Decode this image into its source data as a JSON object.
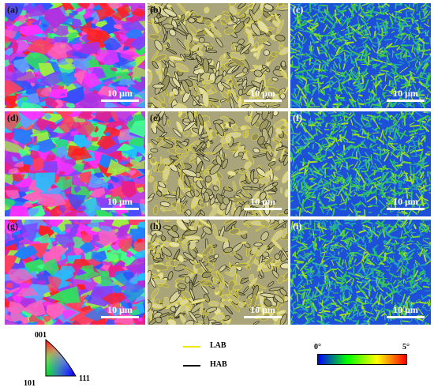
{
  "panels": [
    {
      "label": "(a)",
      "type": "ipf",
      "scale": "10 μm"
    },
    {
      "label": "(b)",
      "type": "grain",
      "scale": "10 μm"
    },
    {
      "label": "(c)",
      "type": "kam",
      "scale": "10 μm"
    },
    {
      "label": "(d)",
      "type": "ipf",
      "scale": "10 μm"
    },
    {
      "label": "(e)",
      "type": "grain",
      "scale": "10 μm"
    },
    {
      "label": "(f)",
      "type": "kam",
      "scale": "10 μm"
    },
    {
      "label": "(g)",
      "type": "ipf",
      "scale": "10 μm"
    },
    {
      "label": "(h)",
      "type": "grain",
      "scale": "10 μm"
    },
    {
      "label": "(i)",
      "type": "kam",
      "scale": "10 μm"
    }
  ],
  "ipf_legend": {
    "top": "001",
    "left": "101",
    "right": "111"
  },
  "boundary_legend": {
    "lab": {
      "label": "LAB",
      "color": "#f2e600"
    },
    "hab": {
      "label": "HAB",
      "color": "#000000"
    }
  },
  "kam_legend": {
    "min": "0°",
    "max": "5°",
    "colors": [
      "#0000ff",
      "#00ff00",
      "#ffff00",
      "#ff0000"
    ]
  }
}
